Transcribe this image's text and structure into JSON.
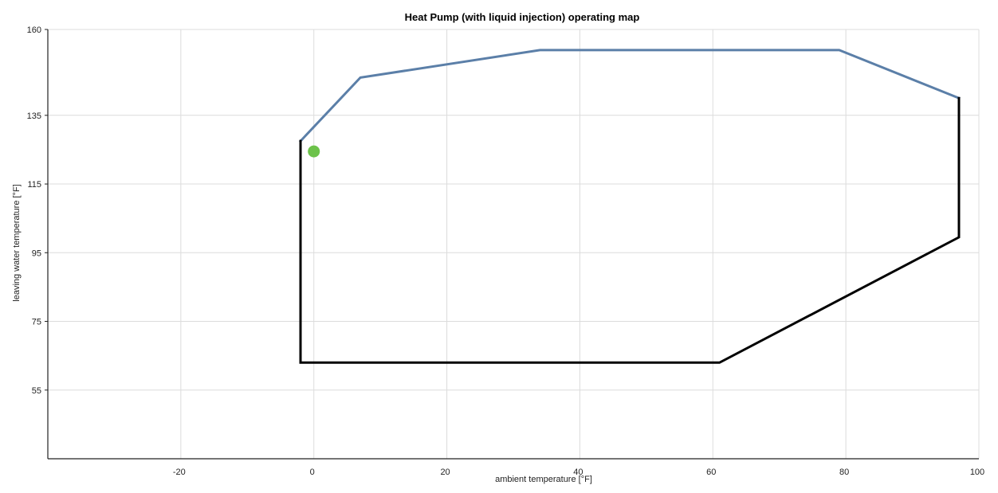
{
  "chart_data": {
    "type": "line",
    "title": "Heat Pump (with liquid injection) operating map",
    "xlabel": "ambient temperature [°F]",
    "ylabel": "leaving water temperature [°F]",
    "xlim": [
      -40,
      100
    ],
    "ylim": [
      35,
      160
    ],
    "x_ticks": [
      -20,
      0,
      20,
      40,
      60,
      80,
      100
    ],
    "y_ticks": [
      55,
      75,
      95,
      115,
      135,
      160
    ],
    "grid": true,
    "series": [
      {
        "color": "#5b7fa8",
        "x": [
          -2,
          7,
          34,
          79,
          97
        ],
        "y": [
          127.5,
          146,
          154,
          154,
          140
        ]
      },
      {
        "color": "#000000",
        "x": [
          97,
          97,
          61,
          -2,
          -2
        ],
        "y": [
          140,
          99.5,
          63,
          63,
          127.5
        ]
      }
    ],
    "points": [
      {
        "x": 0,
        "y": 124.5,
        "color": "#6cc24a"
      }
    ]
  }
}
